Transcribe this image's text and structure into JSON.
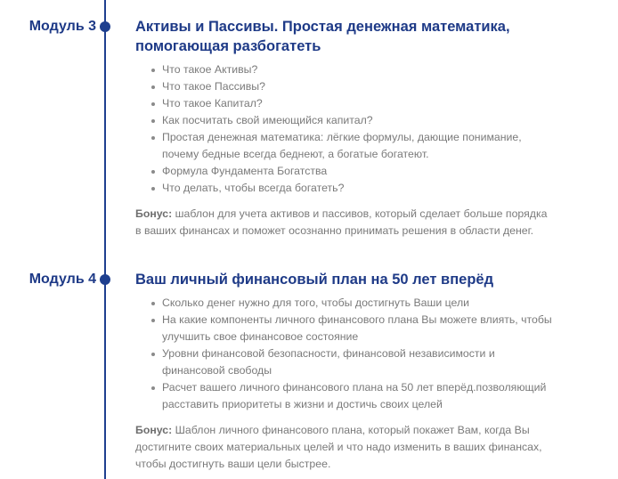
{
  "colors": {
    "accent": "#1e3a87",
    "text": "#7a7a7a"
  },
  "modules": [
    {
      "label": "Модуль 3",
      "title": "Активы и Пассивы. Простая денежная математика, помогающая разбогатеть",
      "items": [
        "Что такое Активы?",
        "Что такое Пассивы?",
        "Что такое Капитал?",
        "Как посчитать свой имеющийся капитал?",
        "Простая денежная математика: лёгкие формулы, дающие понимание, почему бедные всегда беднеют, а богатые богатеют.",
        "Формула Фундамента Богатства",
        "Что делать, чтобы всегда богатеть?"
      ],
      "bonus_label": "Бонус:",
      "bonus_text": " шаблон для учета активов и пассивов, который сделает больше порядка в ваших финансах и поможет осознанно принимать решения в области денег."
    },
    {
      "label": "Модуль 4",
      "title": "Ваш личный финансовый план на 50 лет вперёд",
      "items": [
        "Сколько денег нужно для того, чтобы достигнуть Ваши цели",
        "На какие компоненты личного финансового плана Вы можете влиять, чтобы улучшить свое финансовое состояние",
        "Уровни финансовой безопасности, финансовой независимости и финансовой свободы",
        "Расчет вашего личного финансового плана на 50 лет вперёд.позволяющий расставить приоритеты в жизни и достичь своих целей"
      ],
      "bonus_label": "Бонус:",
      "bonus_text": " Шаблон личного финансового плана, который покажет Вам, когда Вы достигните своих материальных целей и что надо изменить в ваших финансах, чтобы достигнуть ваши цели быстрее."
    }
  ]
}
